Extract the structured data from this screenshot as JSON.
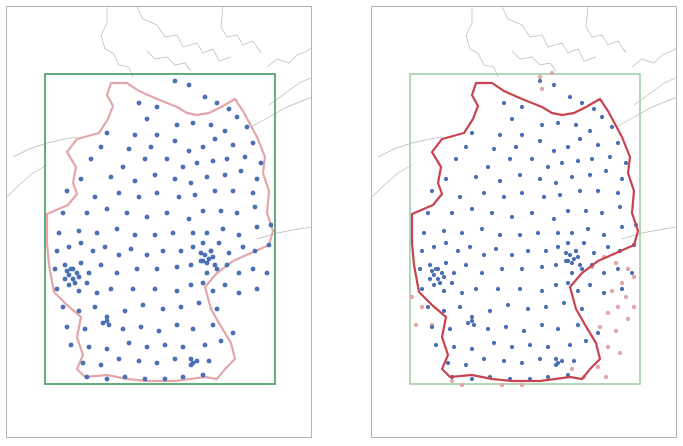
{
  "map": {
    "panels": [
      {
        "id": "left",
        "bbox_style": "solid",
        "border_emphasis": "light",
        "highlight": "points"
      },
      {
        "id": "right",
        "bbox_style": "faded",
        "border_emphasis": "strong",
        "highlight": "border"
      }
    ],
    "colors": {
      "points": "#4a6fb5",
      "border": "#c8434f",
      "border_light": "#e3a6aa",
      "bbox": "#3c9a5a",
      "bbox_faded": "#9fcfa8",
      "context_lines": "#b8b8b8",
      "frame": "#b4b4b4"
    },
    "icons": [
      "map-frame",
      "bounding-box",
      "country-border",
      "station-point"
    ]
  }
}
